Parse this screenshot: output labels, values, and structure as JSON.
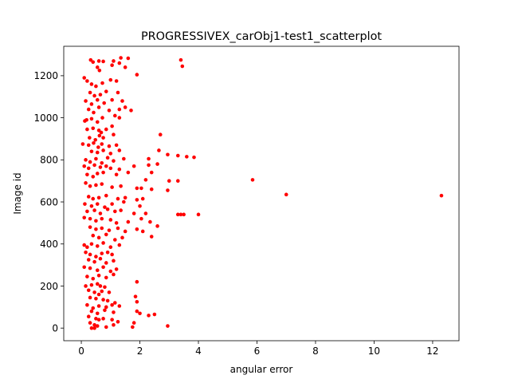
{
  "chart_data": {
    "type": "scatter",
    "title": "PROGRESSIVEX_carObj1-test1_scatterplot",
    "xlabel": "angular error",
    "ylabel": "Image id",
    "xlim": [
      -0.6,
      12.9
    ],
    "ylim": [
      -60,
      1340
    ],
    "xticks": [
      0,
      2,
      4,
      6,
      8,
      10,
      12
    ],
    "yticks": [
      0,
      200,
      400,
      600,
      800,
      1000,
      1200
    ],
    "grid": false,
    "legend": "none",
    "marker_color": "#ff0000",
    "points": [
      [
        0.32,
        1275
      ],
      [
        0.4,
        1265
      ],
      [
        0.6,
        1270
      ],
      [
        0.75,
        1268
      ],
      [
        1.1,
        1270
      ],
      [
        1.35,
        1285
      ],
      [
        1.6,
        1283
      ],
      [
        1.3,
        1260
      ],
      [
        0.55,
        1240
      ],
      [
        0.62,
        1225
      ],
      [
        1.05,
        1250
      ],
      [
        1.5,
        1240
      ],
      [
        1.9,
        1205
      ],
      [
        3.4,
        1275
      ],
      [
        3.45,
        1245
      ],
      [
        0.1,
        1190
      ],
      [
        0.2,
        1175
      ],
      [
        0.35,
        1160
      ],
      [
        0.5,
        1150
      ],
      [
        0.72,
        1165
      ],
      [
        1.0,
        1180
      ],
      [
        1.2,
        1175
      ],
      [
        0.3,
        1120
      ],
      [
        0.45,
        1105
      ],
      [
        0.65,
        1110
      ],
      [
        0.85,
        1125
      ],
      [
        1.25,
        1120
      ],
      [
        0.15,
        1080
      ],
      [
        0.35,
        1065
      ],
      [
        0.55,
        1085
      ],
      [
        0.78,
        1070
      ],
      [
        1.05,
        1085
      ],
      [
        1.4,
        1080
      ],
      [
        0.25,
        1040
      ],
      [
        0.42,
        1025
      ],
      [
        0.6,
        1050
      ],
      [
        0.95,
        1035
      ],
      [
        1.3,
        1040
      ],
      [
        1.5,
        1050
      ],
      [
        1.7,
        1035
      ],
      [
        0.12,
        985
      ],
      [
        0.18,
        990
      ],
      [
        0.35,
        995
      ],
      [
        0.55,
        980
      ],
      [
        0.72,
        1000
      ],
      [
        1.15,
        1010
      ],
      [
        1.3,
        1000
      ],
      [
        0.2,
        945
      ],
      [
        0.4,
        950
      ],
      [
        0.6,
        940
      ],
      [
        0.68,
        930
      ],
      [
        0.85,
        945
      ],
      [
        1.05,
        960
      ],
      [
        0.28,
        905
      ],
      [
        0.48,
        895
      ],
      [
        0.62,
        915
      ],
      [
        0.75,
        905
      ],
      [
        1.1,
        920
      ],
      [
        0.05,
        875
      ],
      [
        0.25,
        870
      ],
      [
        0.42,
        880
      ],
      [
        0.58,
        860
      ],
      [
        0.7,
        875
      ],
      [
        0.95,
        865
      ],
      [
        1.2,
        870
      ],
      [
        2.7,
        920
      ],
      [
        0.35,
        840
      ],
      [
        0.55,
        835
      ],
      [
        0.75,
        845
      ],
      [
        1.0,
        830
      ],
      [
        1.3,
        845
      ],
      [
        2.65,
        845
      ],
      [
        2.95,
        825
      ],
      [
        0.15,
        800
      ],
      [
        0.3,
        790
      ],
      [
        0.5,
        805
      ],
      [
        0.7,
        785
      ],
      [
        0.9,
        810
      ],
      [
        1.1,
        795
      ],
      [
        1.45,
        805
      ],
      [
        2.3,
        805
      ],
      [
        3.3,
        820
      ],
      [
        3.6,
        815
      ],
      [
        3.85,
        812
      ],
      [
        0.1,
        770
      ],
      [
        0.25,
        760
      ],
      [
        0.45,
        775
      ],
      [
        0.65,
        765
      ],
      [
        0.85,
        770
      ],
      [
        1.0,
        760
      ],
      [
        1.3,
        755
      ],
      [
        1.8,
        770
      ],
      [
        2.3,
        775
      ],
      [
        2.6,
        780
      ],
      [
        0.2,
        730
      ],
      [
        0.4,
        720
      ],
      [
        0.55,
        735
      ],
      [
        0.75,
        740
      ],
      [
        1.2,
        730
      ],
      [
        1.6,
        740
      ],
      [
        2.4,
        740
      ],
      [
        2.2,
        705
      ],
      [
        3.0,
        700
      ],
      [
        3.3,
        700
      ],
      [
        5.85,
        705
      ],
      [
        0.15,
        690
      ],
      [
        0.3,
        675
      ],
      [
        0.5,
        680
      ],
      [
        0.7,
        685
      ],
      [
        1.05,
        670
      ],
      [
        1.35,
        675
      ],
      [
        1.9,
        665
      ],
      [
        2.05,
        665
      ],
      [
        2.4,
        660
      ],
      [
        2.95,
        655
      ],
      [
        7.0,
        635
      ],
      [
        12.3,
        630
      ],
      [
        0.25,
        625
      ],
      [
        0.4,
        615
      ],
      [
        0.6,
        620
      ],
      [
        0.85,
        630
      ],
      [
        1.25,
        615
      ],
      [
        1.5,
        620
      ],
      [
        1.9,
        610
      ],
      [
        2.1,
        615
      ],
      [
        0.12,
        590
      ],
      [
        0.35,
        580
      ],
      [
        0.55,
        590
      ],
      [
        0.8,
        575
      ],
      [
        1.05,
        590
      ],
      [
        1.45,
        600
      ],
      [
        2.0,
        580
      ],
      [
        0.2,
        555
      ],
      [
        0.45,
        560
      ],
      [
        0.65,
        545
      ],
      [
        0.9,
        565
      ],
      [
        1.15,
        555
      ],
      [
        1.35,
        560
      ],
      [
        1.8,
        545
      ],
      [
        2.2,
        545
      ],
      [
        3.3,
        540
      ],
      [
        3.4,
        540
      ],
      [
        3.5,
        540
      ],
      [
        4.0,
        540
      ],
      [
        0.1,
        525
      ],
      [
        0.3,
        520
      ],
      [
        0.5,
        510
      ],
      [
        0.7,
        520
      ],
      [
        1.0,
        515
      ],
      [
        1.2,
        500
      ],
      [
        1.6,
        505
      ],
      [
        2.05,
        520
      ],
      [
        2.35,
        505
      ],
      [
        2.6,
        485
      ],
      [
        0.3,
        480
      ],
      [
        0.5,
        470
      ],
      [
        0.7,
        475
      ],
      [
        0.95,
        465
      ],
      [
        1.25,
        475
      ],
      [
        1.5,
        460
      ],
      [
        1.9,
        470
      ],
      [
        2.1,
        460
      ],
      [
        2.4,
        435
      ],
      [
        0.4,
        440
      ],
      [
        0.6,
        430
      ],
      [
        0.85,
        445
      ],
      [
        1.15,
        420
      ],
      [
        1.4,
        430
      ],
      [
        0.1,
        395
      ],
      [
        0.2,
        385
      ],
      [
        0.35,
        400
      ],
      [
        0.55,
        390
      ],
      [
        0.75,
        405
      ],
      [
        1.0,
        385
      ],
      [
        1.3,
        395
      ],
      [
        0.15,
        360
      ],
      [
        0.3,
        350
      ],
      [
        0.5,
        340
      ],
      [
        0.7,
        355
      ],
      [
        0.9,
        360
      ],
      [
        1.05,
        350
      ],
      [
        0.25,
        325
      ],
      [
        0.45,
        315
      ],
      [
        0.65,
        330
      ],
      [
        0.85,
        310
      ],
      [
        1.1,
        320
      ],
      [
        0.1,
        290
      ],
      [
        0.3,
        285
      ],
      [
        0.55,
        275
      ],
      [
        0.75,
        290
      ],
      [
        1.0,
        270
      ],
      [
        1.2,
        280
      ],
      [
        0.2,
        245
      ],
      [
        0.4,
        235
      ],
      [
        0.6,
        250
      ],
      [
        0.85,
        240
      ],
      [
        1.1,
        255
      ],
      [
        0.15,
        200
      ],
      [
        0.35,
        205
      ],
      [
        0.55,
        210
      ],
      [
        0.65,
        200
      ],
      [
        0.8,
        195
      ],
      [
        1.9,
        220
      ],
      [
        0.25,
        180
      ],
      [
        0.45,
        170
      ],
      [
        0.6,
        160
      ],
      [
        0.7,
        175
      ],
      [
        0.95,
        170
      ],
      [
        0.3,
        145
      ],
      [
        0.5,
        140
      ],
      [
        0.75,
        135
      ],
      [
        0.9,
        130
      ],
      [
        1.15,
        120
      ],
      [
        1.85,
        150
      ],
      [
        1.9,
        125
      ],
      [
        0.2,
        110
      ],
      [
        0.4,
        95
      ],
      [
        0.6,
        105
      ],
      [
        0.85,
        100
      ],
      [
        1.05,
        110
      ],
      [
        1.3,
        105
      ],
      [
        0.35,
        80
      ],
      [
        0.55,
        70
      ],
      [
        0.8,
        85
      ],
      [
        1.1,
        75
      ],
      [
        1.9,
        80
      ],
      [
        2.0,
        70
      ],
      [
        2.3,
        60
      ],
      [
        2.5,
        65
      ],
      [
        0.25,
        55
      ],
      [
        0.5,
        45
      ],
      [
        0.6,
        40
      ],
      [
        0.75,
        45
      ],
      [
        1.05,
        40
      ],
      [
        1.25,
        30
      ],
      [
        1.8,
        25
      ],
      [
        0.3,
        25
      ],
      [
        0.45,
        15
      ],
      [
        0.55,
        10
      ],
      [
        0.85,
        5
      ],
      [
        1.1,
        15
      ],
      [
        1.75,
        5
      ],
      [
        2.95,
        10
      ],
      [
        0.35,
        0
      ],
      [
        0.45,
        0
      ]
    ]
  }
}
